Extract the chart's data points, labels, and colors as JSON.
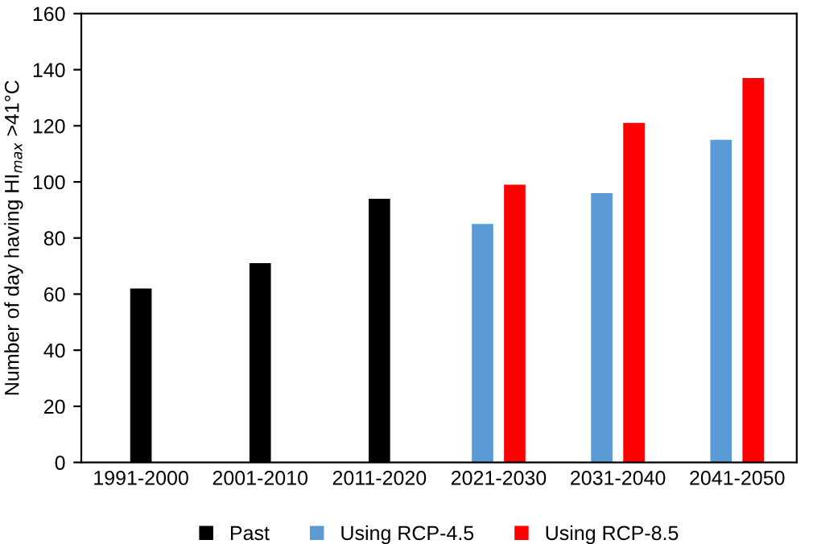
{
  "chart_data": {
    "type": "bar",
    "ylabel": "Number of day having HI$_{max}$ >41°C",
    "categories": [
      "1991-2000",
      "2001-2010",
      "2011-2020",
      "2021-2030",
      "2031-2040",
      "2041-2050"
    ],
    "series": [
      {
        "name": "Past",
        "color": "#000000",
        "values": [
          62,
          71,
          94,
          null,
          null,
          null
        ]
      },
      {
        "name": "Using RCP-4.5",
        "color": "#5b9bd5",
        "values": [
          null,
          null,
          null,
          85,
          96,
          115
        ]
      },
      {
        "name": "Using RCP-8.5",
        "color": "#ff0000",
        "values": [
          null,
          null,
          null,
          99,
          121,
          137
        ]
      }
    ],
    "ylim": [
      0,
      160
    ],
    "yticks": [
      0,
      20,
      40,
      60,
      80,
      100,
      120,
      140,
      160
    ],
    "grid": false,
    "legend": "bottom"
  }
}
